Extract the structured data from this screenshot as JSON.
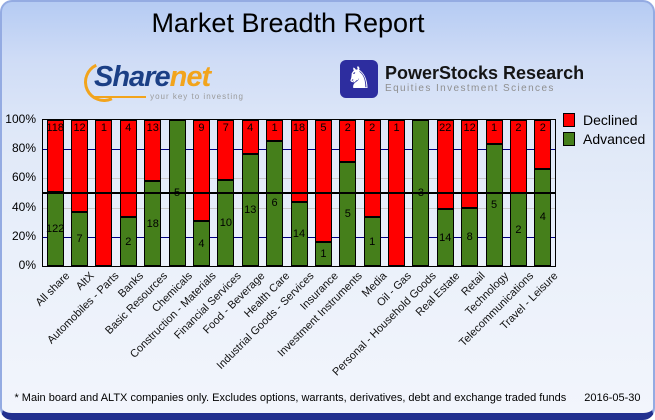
{
  "title": "Market Breadth Report",
  "logos": {
    "sharenet": {
      "name_part1": "Share",
      "name_part2": "net",
      "tagline": "your key to investing"
    },
    "powerstocks": {
      "name": "PowerStocks Research",
      "tagline": "Equities Investment Sciences",
      "icon": "knight-icon",
      "knight_glyph": "♞"
    }
  },
  "footer": {
    "note": "* Main board and ALTX companies only. Excludes options, warrants, derivatives, debt and exchange traded funds",
    "date": "2016-05-30"
  },
  "chart_data": {
    "type": "bar",
    "subtype": "stacked-percent",
    "title": "Market Breadth Report",
    "categories": [
      "All share",
      "AltX",
      "Automobiles - Parts",
      "Banks",
      "Basic Resources",
      "Chemicals",
      "Construction - Materials",
      "Financial Services",
      "Food - Beverage",
      "Health Care",
      "Industrial Goods - Services",
      "Insurance",
      "Investment Instruments",
      "Media",
      "Oil - Gas",
      "Personal - Household Goods",
      "Real Estate",
      "Retail",
      "Technology",
      "Telecommunications",
      "Travel - Leisure"
    ],
    "series": [
      {
        "name": "Declined",
        "color": "#ff0000",
        "values": [
          118,
          12,
          1,
          4,
          13,
          0,
          9,
          7,
          4,
          1,
          18,
          5,
          2,
          2,
          1,
          0,
          22,
          12,
          1,
          2,
          2
        ]
      },
      {
        "name": "Advanced",
        "color": "#457f1b",
        "values": [
          122,
          7,
          0,
          2,
          18,
          5,
          4,
          10,
          13,
          6,
          14,
          1,
          5,
          1,
          0,
          3,
          14,
          8,
          5,
          2,
          4
        ]
      }
    ],
    "y_ticks": [
      "100%",
      "80%",
      "60%",
      "40%",
      "20%",
      "0%"
    ],
    "ylim": [
      0,
      100
    ],
    "grid_lines": [
      {
        "pct": 80,
        "color": "#000080"
      },
      {
        "pct": 60,
        "color": "#c8c8c8"
      },
      {
        "pct": 40,
        "color": "#c8c8c8"
      },
      {
        "pct": 20,
        "color": "#000080"
      }
    ],
    "reference_line": {
      "pct": 50,
      "color": "#000000"
    },
    "legend_position": "top-right",
    "legend": [
      {
        "label": "Declined",
        "color": "#ff0000"
      },
      {
        "label": "Advanced",
        "color": "#457f1b"
      }
    ]
  }
}
